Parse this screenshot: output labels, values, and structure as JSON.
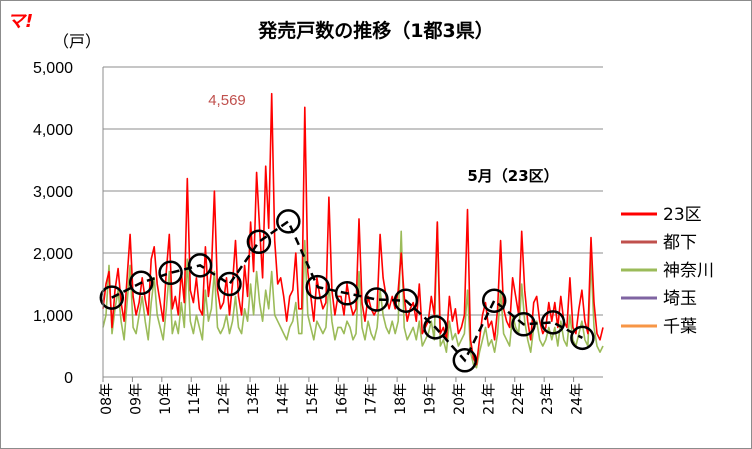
{
  "logo_text": "マ!",
  "chart_data": {
    "type": "line",
    "title": "発売戸数の推移（1都3県）",
    "ylabel": "（戸）",
    "ylim": [
      0,
      5000
    ],
    "yticks": [
      "0",
      "1,000",
      "2,000",
      "3,000",
      "4,000",
      "5,000"
    ],
    "xticks": [
      "08年",
      "09年",
      "10年",
      "11年",
      "12年",
      "13年",
      "14年",
      "15年",
      "16年",
      "17年",
      "18年",
      "19年",
      "20年",
      "21年",
      "22年",
      "23年",
      "24年"
    ],
    "grid": true,
    "legend_position": "right",
    "annotations": {
      "peak_label": "4,569",
      "may_note": "5月（23区）"
    },
    "may_23ku": {
      "x": [
        "08年5月",
        "09年5月",
        "10年5月",
        "11年5月",
        "12年5月",
        "13年5月",
        "14年5月",
        "15年5月",
        "16年5月",
        "17年5月",
        "18年5月",
        "19年5月",
        "20年5月",
        "21年5月",
        "22年5月",
        "23年5月",
        "24年5月"
      ],
      "values": [
        1280,
        1520,
        1680,
        1800,
        1500,
        2180,
        2510,
        1450,
        1350,
        1250,
        1230,
        800,
        270,
        1230,
        850,
        880,
        630
      ]
    },
    "series": [
      {
        "name": "23区",
        "color": "#ff0000",
        "values": [
          1100,
          1500,
          1700,
          800,
          1400,
          1750,
          1200,
          900,
          1600,
          2300,
          1300,
          1000,
          1200,
          1600,
          1250,
          1000,
          1900,
          2100,
          1500,
          1200,
          900,
          1700,
          2300,
          1100,
          1300,
          1000,
          1700,
          1200,
          3200,
          1400,
          1200,
          1600,
          1100,
          1000,
          2100,
          1300,
          1700,
          3000,
          1400,
          1100,
          1200,
          1600,
          1000,
          1500,
          2200,
          1300,
          1000,
          1800,
          1300,
          2500,
          1700,
          3300,
          2400,
          1600,
          3400,
          2400,
          4569,
          2200,
          1500,
          1600,
          1300,
          900,
          1300,
          1400,
          2000,
          1100,
          1100,
          4350,
          1700,
          1300,
          900,
          1600,
          1300,
          1100,
          1200,
          2900,
          1400,
          1000,
          1300,
          1300,
          1000,
          1500,
          1200,
          1000,
          1100,
          2550,
          1200,
          900,
          1300,
          1100,
          1000,
          1100,
          2300,
          1600,
          1300,
          1100,
          1300,
          1100,
          1400,
          2000,
          1300,
          900,
          1100,
          1200,
          900,
          1500,
          700,
          800,
          900,
          1300,
          1000,
          2500,
          700,
          800,
          600,
          1300,
          900,
          1100,
          700,
          800,
          1000,
          2700,
          600,
          300,
          200,
          600,
          1000,
          1200,
          800,
          900,
          600,
          1100,
          2200,
          1100,
          900,
          800,
          1600,
          1300,
          1000,
          2350,
          1400,
          900,
          600,
          1200,
          1300,
          900,
          700,
          800,
          1200,
          900,
          1200,
          800,
          1300,
          900,
          800,
          1600,
          800,
          700,
          1100,
          1400,
          900,
          700,
          2250,
          1200,
          700,
          600,
          800
        ]
      },
      {
        "name": "都下",
        "color": "#c0504d",
        "values": []
      },
      {
        "name": "神奈川",
        "color": "#9bbb59",
        "values": [
          800,
          1000,
          1800,
          700,
          1100,
          1400,
          900,
          600,
          1200,
          1800,
          800,
          700,
          1000,
          1300,
          900,
          600,
          1200,
          1600,
          1000,
          800,
          600,
          1100,
          1700,
          700,
          900,
          700,
          1200,
          800,
          1900,
          900,
          700,
          1000,
          800,
          600,
          1400,
          900,
          1100,
          1700,
          800,
          700,
          800,
          1000,
          700,
          900,
          1300,
          800,
          700,
          1100,
          900,
          1500,
          1000,
          1700,
          1200,
          900,
          1400,
          1100,
          1700,
          1000,
          900,
          800,
          700,
          600,
          800,
          900,
          1200,
          700,
          700,
          2200,
          1000,
          800,
          600,
          900,
          800,
          700,
          800,
          1500,
          900,
          600,
          800,
          800,
          700,
          900,
          800,
          600,
          700,
          1700,
          800,
          600,
          900,
          700,
          600,
          800,
          1400,
          1000,
          800,
          700,
          900,
          700,
          900,
          2350,
          800,
          600,
          700,
          800,
          600,
          900,
          500,
          600,
          700,
          900,
          600,
          2500,
          500,
          600,
          400,
          900,
          600,
          700,
          500,
          600,
          700,
          1400,
          400,
          200,
          150,
          400,
          600,
          800,
          500,
          600,
          400,
          700,
          1400,
          700,
          600,
          500,
          1000,
          800,
          700,
          1500,
          900,
          600,
          400,
          800,
          900,
          600,
          500,
          600,
          800,
          600,
          800,
          500,
          900,
          600,
          500,
          1000,
          600,
          500,
          700,
          900,
          600,
          500,
          1900,
          800,
          500,
          400,
          500
        ]
      },
      {
        "name": "埼玉",
        "color": "#7f64a2",
        "values": []
      },
      {
        "name": "千葉",
        "color": "#f79646",
        "values": []
      }
    ]
  }
}
